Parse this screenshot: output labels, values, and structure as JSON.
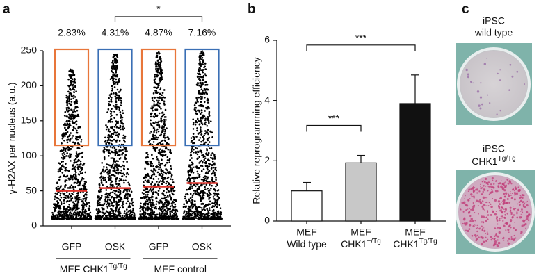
{
  "panel_labels": [
    "a",
    "b",
    "c"
  ],
  "chart_data": [
    {
      "type": "swarm",
      "y_label": "γ-H2AX per nucleus (a.u.)",
      "categories": [
        "GFP",
        "OSK",
        "GFP",
        "OSK"
      ],
      "groups": [
        {
          "label": "MEF CHK1",
          "sup": "Tg/Tg",
          "members": [
            0,
            1
          ]
        },
        {
          "label": "MEF control",
          "members": [
            2,
            3
          ]
        }
      ],
      "mins": [
        10,
        10,
        10,
        10
      ],
      "maxes": [
        225,
        245,
        248,
        250
      ],
      "medians": [
        50,
        54,
        56,
        61
      ],
      "median_color": "#e0332b",
      "high_fraction_labels": [
        "2.83%",
        "4.31%",
        "4.87%",
        "7.16%"
      ],
      "threshold_box": [
        115,
        252
      ],
      "box_colors": [
        "#e8763a",
        "#3a6fb5",
        "#e8763a",
        "#3a6fb5"
      ],
      "significance": {
        "pair": [
          1,
          3
        ],
        "label": "*"
      },
      "ylim": [
        0,
        250
      ],
      "yticks": [
        0,
        50,
        100,
        150,
        200,
        250
      ]
    },
    {
      "type": "bar",
      "y_label": "Relative reprogramming efficiency",
      "categories": [
        {
          "line1": "MEF",
          "line2": "Wild type"
        },
        {
          "line1": "MEF",
          "line2": "CHK1",
          "sup": "+/Tg"
        },
        {
          "line1": "MEF",
          "line2": "CHK1",
          "sup": "Tg/Tg"
        }
      ],
      "values": [
        1.0,
        1.93,
        3.9
      ],
      "errors": [
        0.28,
        0.25,
        0.95
      ],
      "colors": [
        "#ffffff",
        "#c8c8c8",
        "#111111"
      ],
      "significance": [
        {
          "pair": [
            0,
            2
          ],
          "label": "***"
        },
        {
          "pair": [
            0,
            1
          ],
          "label": "***"
        }
      ],
      "ylim": [
        0,
        6
      ],
      "yticks": [
        0,
        2,
        4,
        6
      ]
    }
  ],
  "wells": [
    {
      "line1": "iPSC",
      "line2": "wild type"
    },
    {
      "line1": "iPSC",
      "line2": "CHK1",
      "sup": "Tg/Tg"
    }
  ]
}
